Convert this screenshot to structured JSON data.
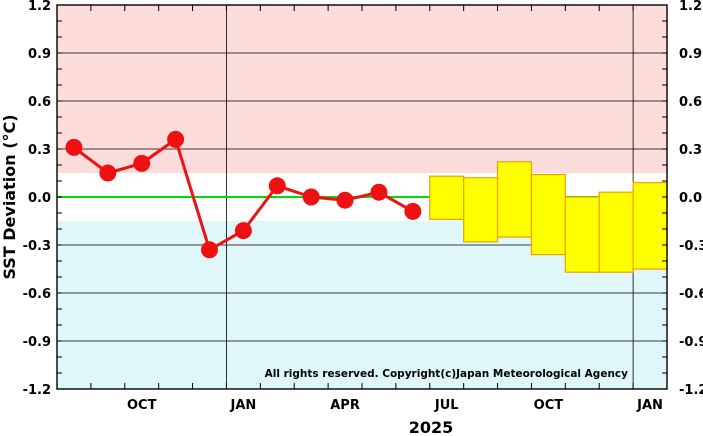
{
  "chart_data": {
    "type": "line",
    "ylabel": "SST Deviation (°C)",
    "xlabel": "2025",
    "y_ticks": [
      "1.2",
      "0.9",
      "0.6",
      "0.3",
      "0.0",
      "-0.3",
      "-0.6",
      "-0.9",
      "-1.2"
    ],
    "ylim": [
      -1.2,
      1.2
    ],
    "x_ticks": [
      {
        "label": "OCT",
        "month": 4
      },
      {
        "label": "JAN",
        "month": 7
      },
      {
        "label": "APR",
        "month": 10
      },
      {
        "label": "JUL",
        "month": 13
      },
      {
        "label": "OCT",
        "month": 16
      },
      {
        "label": "JAN",
        "month": 19
      }
    ],
    "x_month_range": [
      1.5,
      19.5
    ],
    "elnino_threshold": 0.15,
    "lanina_threshold": -0.15,
    "observed": {
      "months": [
        2,
        3,
        4,
        5,
        6,
        7,
        8,
        9,
        10,
        11,
        12
      ],
      "values": [
        0.31,
        0.15,
        0.21,
        0.36,
        -0.33,
        -0.21,
        0.07,
        0.0,
        -0.02,
        0.03,
        -0.09
      ]
    },
    "forecast_boxes": [
      {
        "month": 13,
        "low": -0.14,
        "high": 0.13
      },
      {
        "month": 14,
        "low": -0.28,
        "high": 0.12
      },
      {
        "month": 15,
        "low": -0.25,
        "high": 0.22
      },
      {
        "month": 16,
        "low": -0.36,
        "high": 0.14
      },
      {
        "month": 17,
        "low": -0.47,
        "high": 0.0
      },
      {
        "month": 18,
        "low": -0.47,
        "high": 0.03
      },
      {
        "month": 19,
        "low": -0.45,
        "high": 0.09
      }
    ],
    "grid": true,
    "copyright": "All rights reserved. Copyright(c)Japan Meteorological Agency",
    "colors": {
      "warm_zone": "#fddcdc",
      "cool_zone": "#dff7f8",
      "zero_line": "#00dd00",
      "observed": "#ee1111",
      "forecast_fill": "#ffff00",
      "forecast_edge": "#f2a000"
    }
  }
}
